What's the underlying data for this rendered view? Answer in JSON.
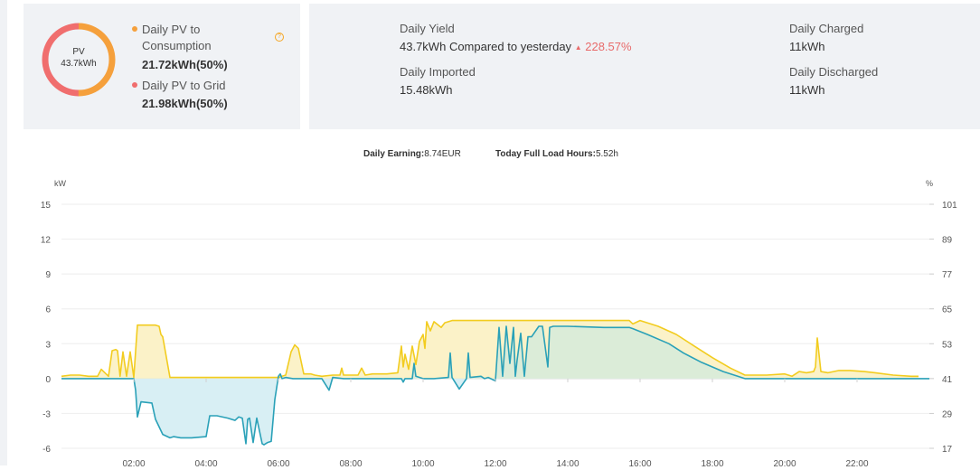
{
  "pv_card": {
    "donut_title": "PV",
    "donut_total": "43.7kWh",
    "consumption_label_line1": "Daily PV to",
    "consumption_label_line2": "Consumption",
    "consumption_value": "21.72kWh(50%)",
    "grid_label": "Daily PV to Grid",
    "grid_value": "21.98kWh(50%)",
    "consumption_share": 0.5,
    "grid_share": 0.5,
    "help_icon": "?",
    "colors": {
      "consumption": "#f5a03c",
      "grid": "#f06e6e"
    }
  },
  "stats": {
    "daily_yield_label": "Daily Yield",
    "daily_yield_value": "43.7kWh",
    "compared_text": "Compared to yesterday",
    "up_arrow": "▲",
    "compared_change": "228.57%",
    "daily_imported_label": "Daily Imported",
    "daily_imported_value": "15.48kWh",
    "daily_charged_label": "Daily Charged",
    "daily_charged_value": "11kWh",
    "daily_discharged_label": "Daily Discharged",
    "daily_discharged_value": "11kWh"
  },
  "summary": {
    "earning_label": "Daily Earning:",
    "earning_value": "8.74EUR",
    "full_load_label": "Today Full Load Hours:",
    "full_load_value": "5.52h"
  },
  "chart_data": {
    "type": "area",
    "yunit_left": "kW",
    "yunit_right": "%",
    "yticks_left": [
      15,
      12,
      9,
      6,
      3,
      0,
      -3,
      -6
    ],
    "yticks_right": [
      101,
      89,
      77,
      65,
      53,
      41,
      29,
      17
    ],
    "ylim": [
      -6,
      15
    ],
    "xlim": [
      0,
      24
    ],
    "xticks": [
      "02:00",
      "04:00",
      "06:00",
      "08:00",
      "10:00",
      "12:00",
      "14:00",
      "16:00",
      "18:00",
      "20:00",
      "22:00"
    ],
    "grid": true,
    "colors": {
      "pv": "#f2cc1f",
      "grid": "#2aa1b8",
      "pv_fill": "#fbf2c8",
      "grid_fill": "#d6eef3",
      "overlap_fill": "#dbecd8"
    },
    "series": [
      {
        "key": "pv",
        "x": [
          0,
          0.25,
          0.5,
          0.75,
          1.0,
          1.1,
          1.3,
          1.4,
          1.5,
          1.55,
          1.62,
          1.7,
          1.8,
          1.9,
          2.0,
          2.1,
          2.4,
          2.6,
          2.7,
          2.75,
          2.8,
          3.0,
          4.0,
          5.0,
          5.8,
          5.9,
          6.0,
          6.1,
          6.2,
          6.35,
          6.45,
          6.55,
          6.7,
          6.9,
          7.0,
          7.2,
          7.5,
          7.7,
          7.75,
          7.8,
          8.0,
          8.2,
          8.3,
          8.4,
          8.6,
          9.0,
          9.3,
          9.4,
          9.45,
          9.5,
          9.6,
          9.7,
          9.8,
          9.9,
          10.0,
          10.05,
          10.1,
          10.2,
          10.3,
          10.5,
          10.6,
          10.8,
          11.0,
          12.0,
          13.0,
          14.0,
          15.0,
          15.7,
          15.8,
          16.0,
          16.5,
          17.0,
          17.5,
          18.0,
          18.5,
          18.9,
          19.0,
          19.5,
          20.0,
          20.2,
          20.4,
          20.6,
          20.8,
          20.85,
          20.9,
          21.0,
          21.2,
          21.5,
          21.8,
          22.2,
          22.5,
          23.0,
          23.5,
          23.7
        ],
        "y": [
          0.2,
          0.3,
          0.3,
          0.2,
          0.2,
          0.8,
          0.2,
          2.4,
          2.5,
          2.4,
          0.2,
          2.3,
          0.2,
          2.3,
          0.1,
          4.6,
          4.6,
          4.6,
          4.5,
          3.8,
          3.6,
          0.1,
          0.1,
          0.1,
          0.1,
          0.1,
          0.1,
          0.2,
          0.3,
          2.3,
          2.9,
          2.6,
          0.4,
          0.4,
          0.3,
          0.2,
          0.3,
          0.3,
          0.9,
          0.3,
          0.3,
          0.3,
          0.9,
          0.3,
          0.4,
          0.4,
          0.5,
          2.8,
          1.0,
          2.1,
          0.8,
          2.8,
          1.2,
          3.2,
          3.8,
          2.6,
          4.9,
          4.1,
          4.9,
          4.4,
          4.8,
          5.0,
          5.0,
          5.0,
          5.0,
          5.0,
          5.0,
          5.0,
          4.7,
          5.0,
          4.5,
          3.8,
          2.8,
          1.8,
          0.9,
          0.3,
          0.3,
          0.3,
          0.4,
          0.2,
          0.6,
          0.5,
          0.6,
          1.0,
          3.5,
          0.6,
          0.5,
          0.7,
          0.7,
          0.6,
          0.5,
          0.3,
          0.2,
          0.2
        ]
      },
      {
        "key": "grid",
        "x": [
          0,
          1.9,
          2.0,
          2.05,
          2.1,
          2.2,
          2.5,
          2.6,
          2.8,
          3.0,
          3.1,
          3.3,
          3.6,
          4.0,
          4.1,
          4.3,
          4.6,
          4.8,
          4.9,
          5.0,
          5.1,
          5.15,
          5.2,
          5.3,
          5.4,
          5.55,
          5.6,
          5.7,
          5.8,
          5.9,
          6.0,
          6.05,
          6.1,
          6.2,
          6.4,
          7.2,
          7.4,
          7.5,
          7.8,
          9.4,
          9.45,
          9.5,
          9.7,
          9.75,
          9.8,
          10.0,
          10.3,
          10.7,
          10.75,
          10.8,
          11.0,
          11.2,
          11.25,
          11.3,
          11.6,
          11.7,
          11.8,
          12.0,
          12.1,
          12.2,
          12.3,
          12.4,
          12.5,
          12.55,
          12.6,
          12.7,
          12.8,
          12.9,
          13.0,
          13.2,
          13.3,
          13.45,
          13.5,
          13.6,
          13.7,
          14.0,
          15.0,
          15.7,
          15.8,
          16.2,
          16.8,
          17.2,
          17.7,
          18.3,
          18.7,
          18.9,
          24
        ],
        "y": [
          0,
          0,
          0,
          -1.0,
          -3.3,
          -2.0,
          -2.1,
          -3.5,
          -4.8,
          -5.1,
          -5.0,
          -5.1,
          -5.1,
          -5.0,
          -3.2,
          -3.2,
          -3.4,
          -3.6,
          -3.3,
          -3.4,
          -5.6,
          -3.5,
          -3.4,
          -5.5,
          -3.4,
          -5.6,
          -5.7,
          -5.5,
          -5.4,
          -1.8,
          0.2,
          0.4,
          0,
          0.1,
          0,
          0,
          -1.0,
          0.1,
          0,
          0,
          -0.3,
          0,
          0,
          1.3,
          0.2,
          0,
          0,
          0.1,
          2.2,
          0.1,
          -0.9,
          0,
          2.2,
          0.1,
          0.2,
          0,
          0.1,
          -0.2,
          4.4,
          0.2,
          4.5,
          1.3,
          4.4,
          0.2,
          1.6,
          3.9,
          0.2,
          3.6,
          3.6,
          4.5,
          4.5,
          1.0,
          4.4,
          4.5,
          4.5,
          4.5,
          4.4,
          4.4,
          4.3,
          3.8,
          3.0,
          2.2,
          1.4,
          0.6,
          0.2,
          0,
          0
        ]
      }
    ]
  }
}
